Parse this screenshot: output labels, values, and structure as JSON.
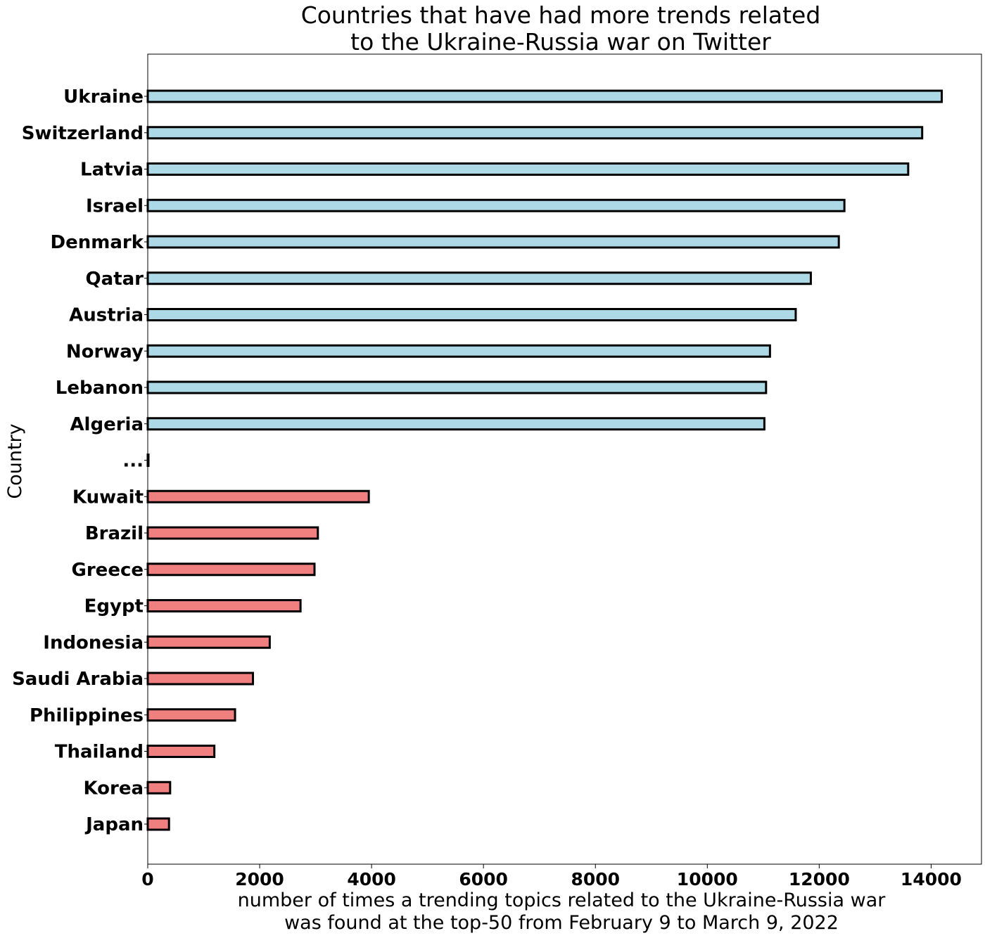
{
  "chart_data": {
    "type": "bar",
    "orientation": "horizontal",
    "title": "Countries that have had more trends related\nto the Ukraine-Russia war on Twitter",
    "xlabel": "number of times a trending topics related to the Ukraine-Russia war\nwas found at the top-50 from February 9 to March 9, 2022",
    "ylabel": "Country",
    "xlim": [
      0,
      14900
    ],
    "xticks": [
      0,
      2000,
      4000,
      6000,
      8000,
      10000,
      12000,
      14000
    ],
    "grid": false,
    "categories": [
      "Ukraine",
      "Switzerland",
      "Latvia",
      "Israel",
      "Denmark",
      "Qatar",
      "Austria",
      "Norway",
      "Lebanon",
      "Algeria",
      "...",
      "Kuwait",
      "Brazil",
      "Greece",
      "Egypt",
      "Indonesia",
      "Saudi Arabia",
      "Philippines",
      "Thailand",
      "Korea",
      "Japan"
    ],
    "values": [
      14190,
      13840,
      13590,
      12450,
      12350,
      11850,
      11580,
      11120,
      11050,
      11020,
      0,
      3950,
      3040,
      2980,
      2730,
      2180,
      1880,
      1560,
      1190,
      400,
      380
    ],
    "colors": [
      "#add8e6",
      "#add8e6",
      "#add8e6",
      "#add8e6",
      "#add8e6",
      "#add8e6",
      "#add8e6",
      "#add8e6",
      "#add8e6",
      "#add8e6",
      "#ffffff",
      "#f08080",
      "#f08080",
      "#f08080",
      "#f08080",
      "#f08080",
      "#f08080",
      "#f08080",
      "#f08080",
      "#f08080",
      "#f08080"
    ],
    "edgecolor": "#000000"
  }
}
